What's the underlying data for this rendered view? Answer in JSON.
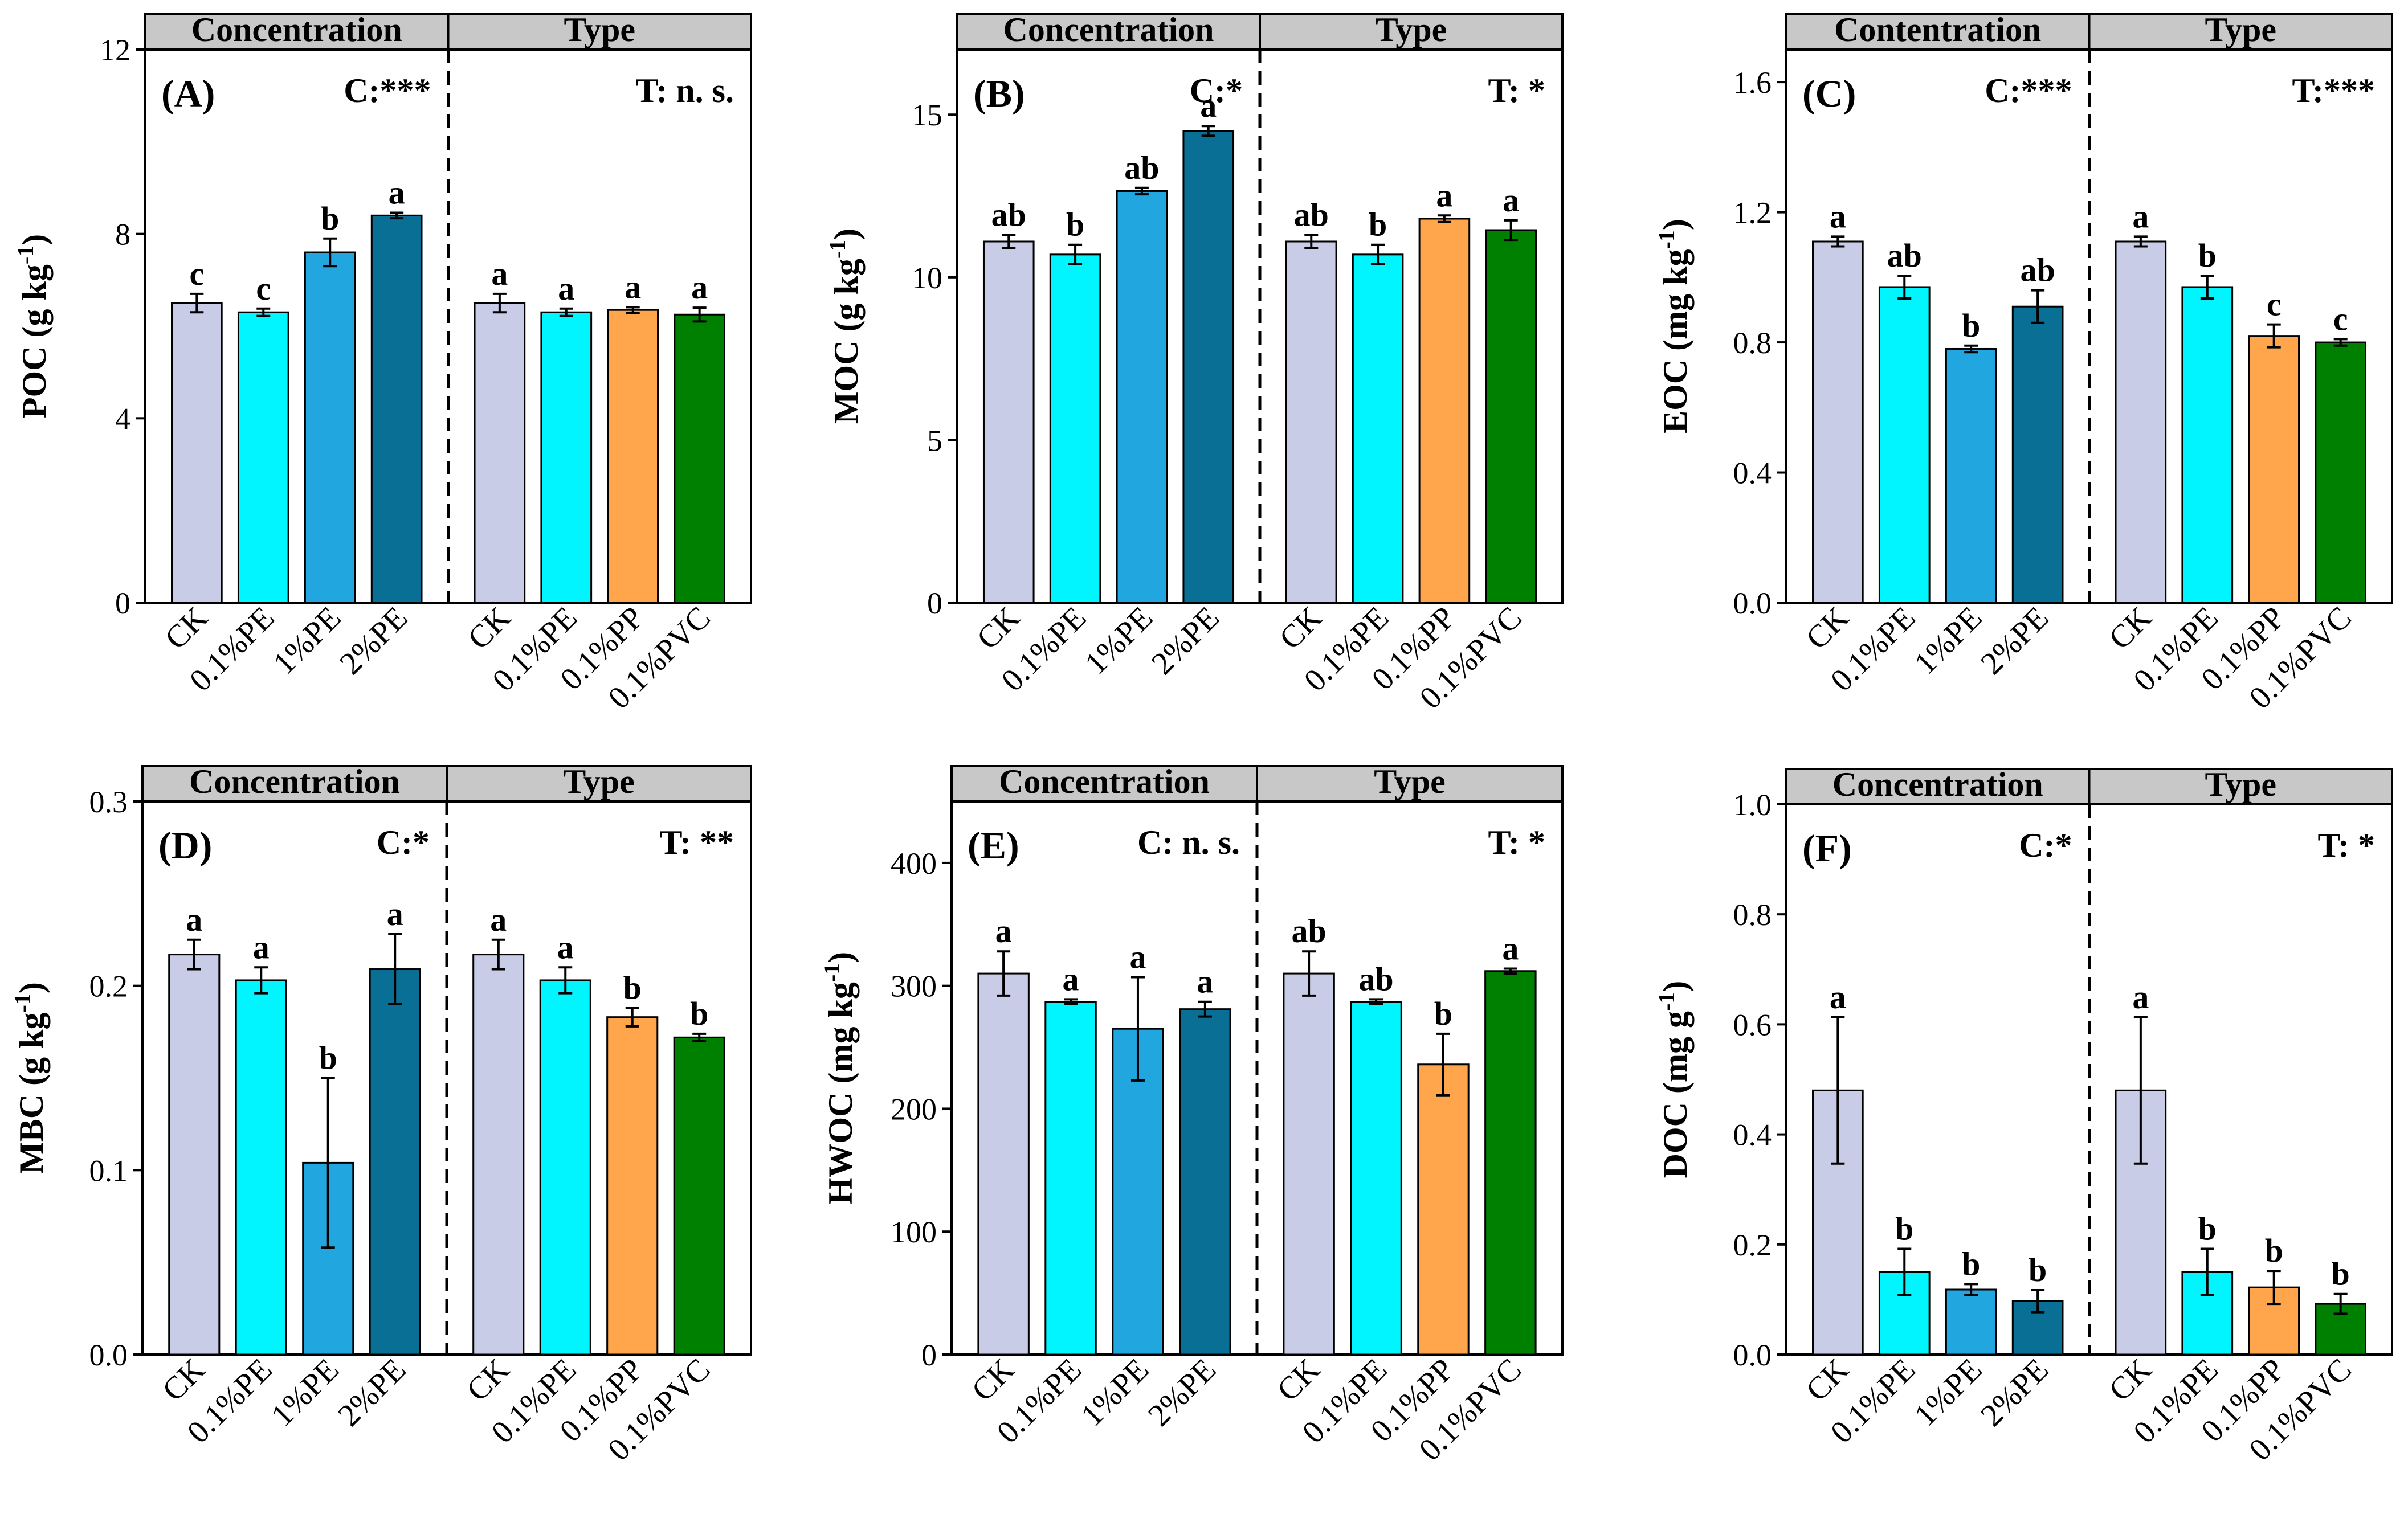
{
  "colors": {
    "CK": "#c8cce6",
    "0.1%PE": "#00f5ff",
    "1%PE": "#22a6e0",
    "2%PE": "#0a6f94",
    "0.1%PP": "#ffa64d",
    "0.1%PVC": "#008000",
    "header": "#c8c8c8"
  },
  "chart_data": [
    {
      "type": "bar",
      "panel": "(A)",
      "ylabel": "POC (g kg",
      "ylabel_sup": "-1",
      "ylim": [
        0,
        12
      ],
      "yticks": [
        "0",
        "4",
        "8",
        "12"
      ],
      "ytick_values": [
        0,
        4,
        8,
        12
      ],
      "groups": [
        {
          "header": "Concentration",
          "sig": "C:***",
          "categories": [
            "CK",
            "0.1%PE",
            "1%PE",
            "2%PE"
          ],
          "values": [
            6.5,
            6.3,
            7.6,
            8.4
          ],
          "errors": [
            0.2,
            0.08,
            0.3,
            0.06
          ],
          "letters": [
            "c",
            "c",
            "b",
            "a"
          ]
        },
        {
          "header": "Type",
          "sig": "T:  n. s.",
          "categories": [
            "CK",
            "0.1%PE",
            "0.1%PP",
            "0.1%PVC"
          ],
          "values": [
            6.5,
            6.3,
            6.35,
            6.25
          ],
          "errors": [
            0.2,
            0.08,
            0.06,
            0.15
          ],
          "letters": [
            "a",
            "a",
            "a",
            "a"
          ]
        }
      ]
    },
    {
      "type": "bar",
      "panel": "(B)",
      "ylabel": "MOC (g kg",
      "ylabel_sup": "-1",
      "ylim": [
        0,
        17
      ],
      "yticks": [
        "0",
        "5",
        "10",
        "15"
      ],
      "ytick_values": [
        0,
        5,
        10,
        15
      ],
      "groups": [
        {
          "header": "Concentration",
          "sig": "C:*",
          "categories": [
            "CK",
            "0.1%PE",
            "1%PE",
            "2%PE"
          ],
          "values": [
            11.1,
            10.7,
            12.65,
            14.5
          ],
          "errors": [
            0.2,
            0.3,
            0.1,
            0.15
          ],
          "letters": [
            "ab",
            "b",
            "ab",
            "a"
          ]
        },
        {
          "header": "Type",
          "sig": "T:  *",
          "categories": [
            "CK",
            "0.1%PE",
            "0.1%PP",
            "0.1%PVC"
          ],
          "values": [
            11.1,
            10.7,
            11.8,
            11.45
          ],
          "errors": [
            0.2,
            0.3,
            0.1,
            0.3
          ],
          "letters": [
            "ab",
            "b",
            "a",
            "a"
          ]
        }
      ]
    },
    {
      "type": "bar",
      "panel": "(C)",
      "ylabel": "EOC (mg kg",
      "ylabel_sup": "-1",
      "ylim": [
        0,
        1.7
      ],
      "yticks": [
        "0.0",
        "0.4",
        "0.8",
        "1.2",
        "1.6"
      ],
      "ytick_values": [
        0,
        0.4,
        0.8,
        1.2,
        1.6
      ],
      "groups": [
        {
          "header": "Contentration",
          "sig": "C:***",
          "categories": [
            "CK",
            "0.1%PE",
            "1%PE",
            "2%PE"
          ],
          "values": [
            1.11,
            0.97,
            0.78,
            0.91
          ],
          "errors": [
            0.015,
            0.035,
            0.01,
            0.05
          ],
          "letters": [
            "a",
            "ab",
            "b",
            "ab"
          ]
        },
        {
          "header": "Type",
          "sig": "T:***",
          "categories": [
            "CK",
            "0.1%PE",
            "0.1%PP",
            "0.1%PVC"
          ],
          "values": [
            1.11,
            0.97,
            0.82,
            0.8
          ],
          "errors": [
            0.015,
            0.035,
            0.035,
            0.01
          ],
          "letters": [
            "a",
            "b",
            "c",
            "c"
          ]
        }
      ]
    },
    {
      "type": "bar",
      "panel": "(D)",
      "ylabel": "MBC (g kg",
      "ylabel_sup": "-1",
      "ylim": [
        0,
        0.3
      ],
      "yticks": [
        "0.0",
        "0.1",
        "0.2",
        "0.3"
      ],
      "ytick_values": [
        0,
        0.1,
        0.2,
        0.3
      ],
      "groups": [
        {
          "header": "Concentration",
          "sig": "C:*",
          "categories": [
            "CK",
            "0.1%PE",
            "1%PE",
            "2%PE"
          ],
          "values": [
            0.217,
            0.203,
            0.104,
            0.209
          ],
          "errors": [
            0.008,
            0.007,
            0.046,
            0.019
          ],
          "letters": [
            "a",
            "a",
            "b",
            "a"
          ]
        },
        {
          "header": "Type",
          "sig": "T:  **",
          "categories": [
            "CK",
            "0.1%PE",
            "0.1%PP",
            "0.1%PVC"
          ],
          "values": [
            0.217,
            0.203,
            0.183,
            0.172
          ],
          "errors": [
            0.008,
            0.007,
            0.005,
            0.002
          ],
          "letters": [
            "a",
            "a",
            "b",
            "b"
          ]
        }
      ]
    },
    {
      "type": "bar",
      "panel": "(E)",
      "ylabel": "HWOC (mg kg",
      "ylabel_sup": "-1",
      "ylim": [
        0,
        450
      ],
      "yticks": [
        "0",
        "100",
        "200",
        "300",
        "400"
      ],
      "ytick_values": [
        0,
        100,
        200,
        300,
        400
      ],
      "groups": [
        {
          "header": "Concentration",
          "sig": "C:  n. s.",
          "categories": [
            "CK",
            "0.1%PE",
            "1%PE",
            "2%PE"
          ],
          "values": [
            310,
            287,
            265,
            281
          ],
          "errors": [
            18,
            2,
            42,
            6
          ],
          "letters": [
            "a",
            "a",
            "a",
            "a"
          ]
        },
        {
          "header": "Type",
          "sig": "T:  *",
          "categories": [
            "CK",
            "0.1%PE",
            "0.1%PP",
            "0.1%PVC"
          ],
          "values": [
            310,
            287,
            236,
            312
          ],
          "errors": [
            18,
            2,
            25,
            2
          ],
          "letters": [
            "ab",
            "ab",
            "b",
            "a"
          ]
        }
      ]
    },
    {
      "type": "bar",
      "panel": "(F)",
      "ylabel": "DOC (mg g",
      "ylabel_sup": "-1",
      "ylim": [
        0,
        1.0
      ],
      "yticks": [
        "0.0",
        "0.2",
        "0.4",
        "0.6",
        "0.8",
        "1.0"
      ],
      "ytick_values": [
        0,
        0.2,
        0.4,
        0.6,
        0.8,
        1.0
      ],
      "groups": [
        {
          "header": "Concentration",
          "sig": "C:*",
          "categories": [
            "CK",
            "0.1%PE",
            "1%PE",
            "2%PE"
          ],
          "values": [
            0.48,
            0.15,
            0.118,
            0.097
          ],
          "errors": [
            0.133,
            0.042,
            0.01,
            0.02
          ],
          "letters": [
            "a",
            "b",
            "b",
            "b"
          ]
        },
        {
          "header": "Type",
          "sig": "T:  *",
          "categories": [
            "CK",
            "0.1%PE",
            "0.1%PP",
            "0.1%PVC"
          ],
          "values": [
            0.48,
            0.15,
            0.122,
            0.092
          ],
          "errors": [
            0.133,
            0.042,
            0.03,
            0.018
          ],
          "letters": [
            "a",
            "b",
            "b",
            "b"
          ]
        }
      ]
    }
  ]
}
